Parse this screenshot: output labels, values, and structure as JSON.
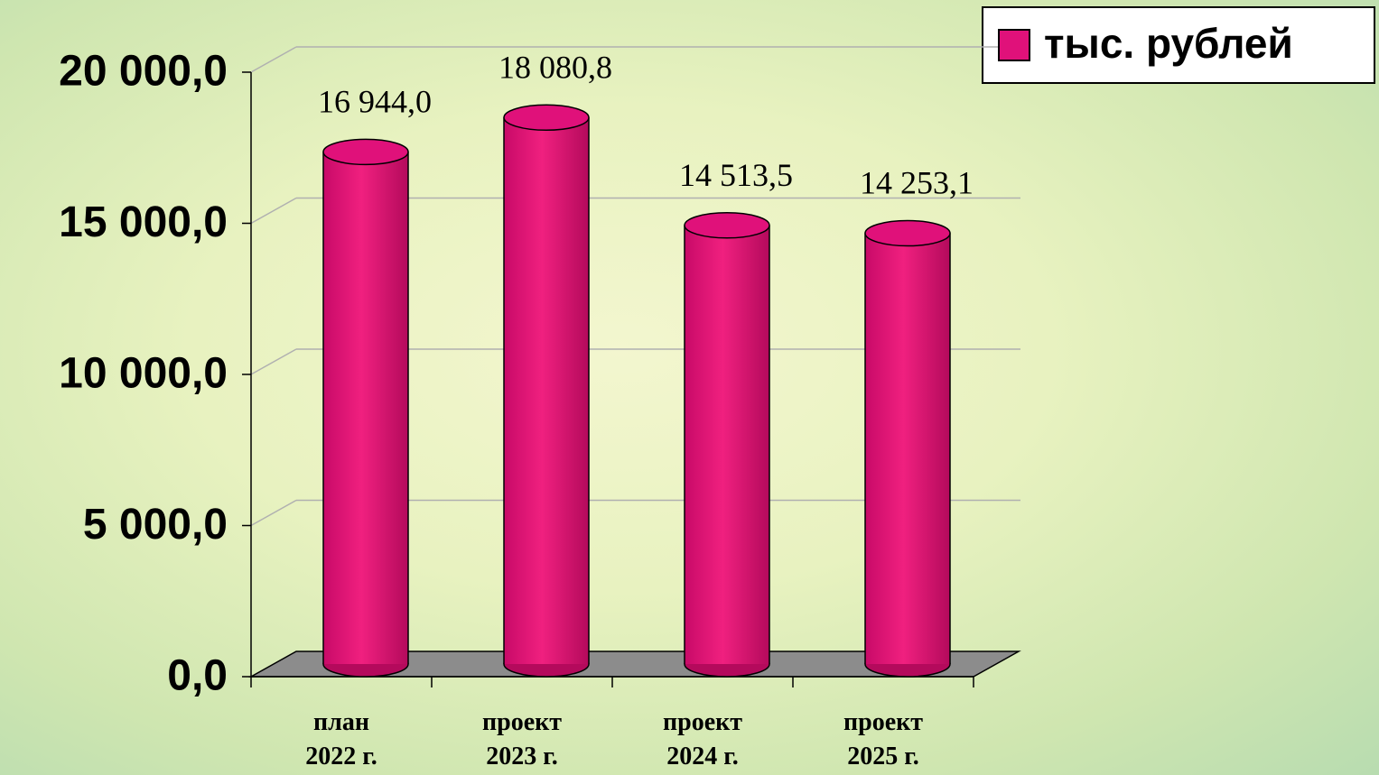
{
  "chart_data": {
    "type": "bar3d",
    "categories": [
      "план\n2022 г.",
      "проект\n2023 г.",
      "проект\n2024 г.",
      "проект\n2025 г."
    ],
    "series": [
      {
        "name": "тыс. рублей",
        "color": "#e0117a",
        "values": [
          16944.0,
          18080.8,
          14513.5,
          14253.1
        ],
        "value_labels": [
          "16 944,0",
          "18 080,8",
          "14 513,5",
          "14 253,1"
        ]
      }
    ],
    "ylim": [
      0,
      20000
    ],
    "yticks": [
      {
        "value": 0,
        "label": "0,0"
      },
      {
        "value": 5000,
        "label": "5 000,0"
      },
      {
        "value": 10000,
        "label": "10 000,0"
      },
      {
        "value": 15000,
        "label": "15 000,0"
      },
      {
        "value": 20000,
        "label": "20 000,0"
      }
    ],
    "grid": true,
    "legend": "top-right"
  }
}
